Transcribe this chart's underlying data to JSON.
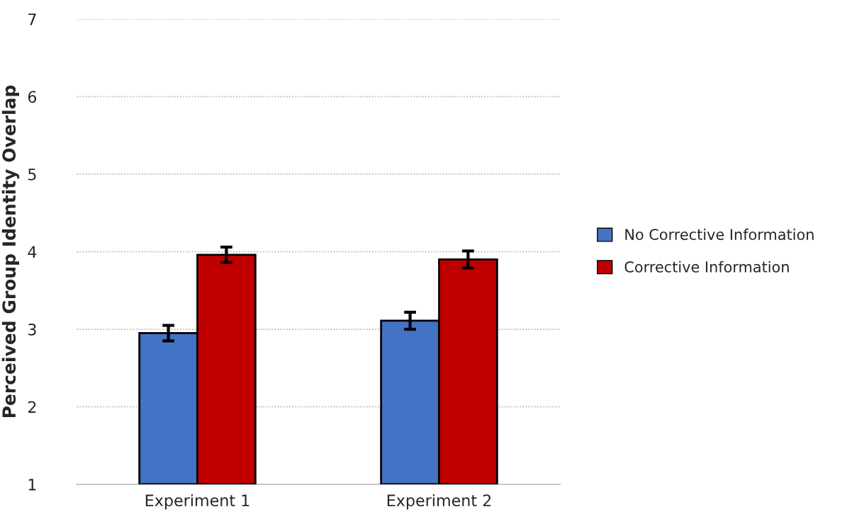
{
  "chart_data": {
    "type": "bar",
    "ylabel": "Perceived Group Identity Overlap",
    "categories": [
      "Experiment 1",
      "Experiment 2"
    ],
    "series": [
      {
        "name": "No Corrective Information",
        "color": "#4472c4",
        "values": [
          2.95,
          3.11
        ],
        "errors": [
          0.1,
          0.11
        ]
      },
      {
        "name": "Corrective Information",
        "color": "#c00000",
        "values": [
          3.96,
          3.9
        ],
        "errors": [
          0.1,
          0.11
        ]
      }
    ],
    "ylim": [
      1,
      7
    ],
    "yticks": [
      1,
      2,
      3,
      4,
      5,
      6,
      7
    ],
    "grid": "y",
    "legend": "right"
  }
}
